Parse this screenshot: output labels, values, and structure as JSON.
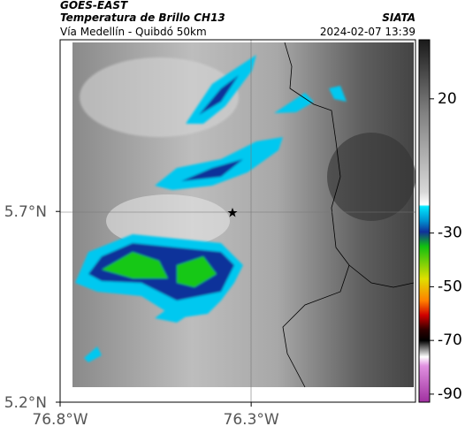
{
  "header": {
    "satellite": "GOES-EAST",
    "title": "Temperatura de Brillo CH13",
    "source": "SIATA",
    "subtitle": "Vía Medellín - Quibdó 50km",
    "timestamp": "2024-02-07 13:39"
  },
  "map": {
    "lat_range": [
      5.2,
      6.15
    ],
    "lon_range": [
      -76.8,
      -75.87
    ],
    "lat_ticks": [
      {
        "value": 5.7,
        "label": "5.7°N"
      },
      {
        "value": 5.2,
        "label": "5.2°N"
      }
    ],
    "lon_ticks": [
      {
        "value": -76.8,
        "label": "76.8°W"
      },
      {
        "value": -76.3,
        "label": "76.3°W"
      }
    ]
  },
  "colorbar": {
    "range": [
      -93,
      42
    ],
    "ticks": [
      20,
      -30,
      -50,
      -70,
      -90
    ]
  }
}
